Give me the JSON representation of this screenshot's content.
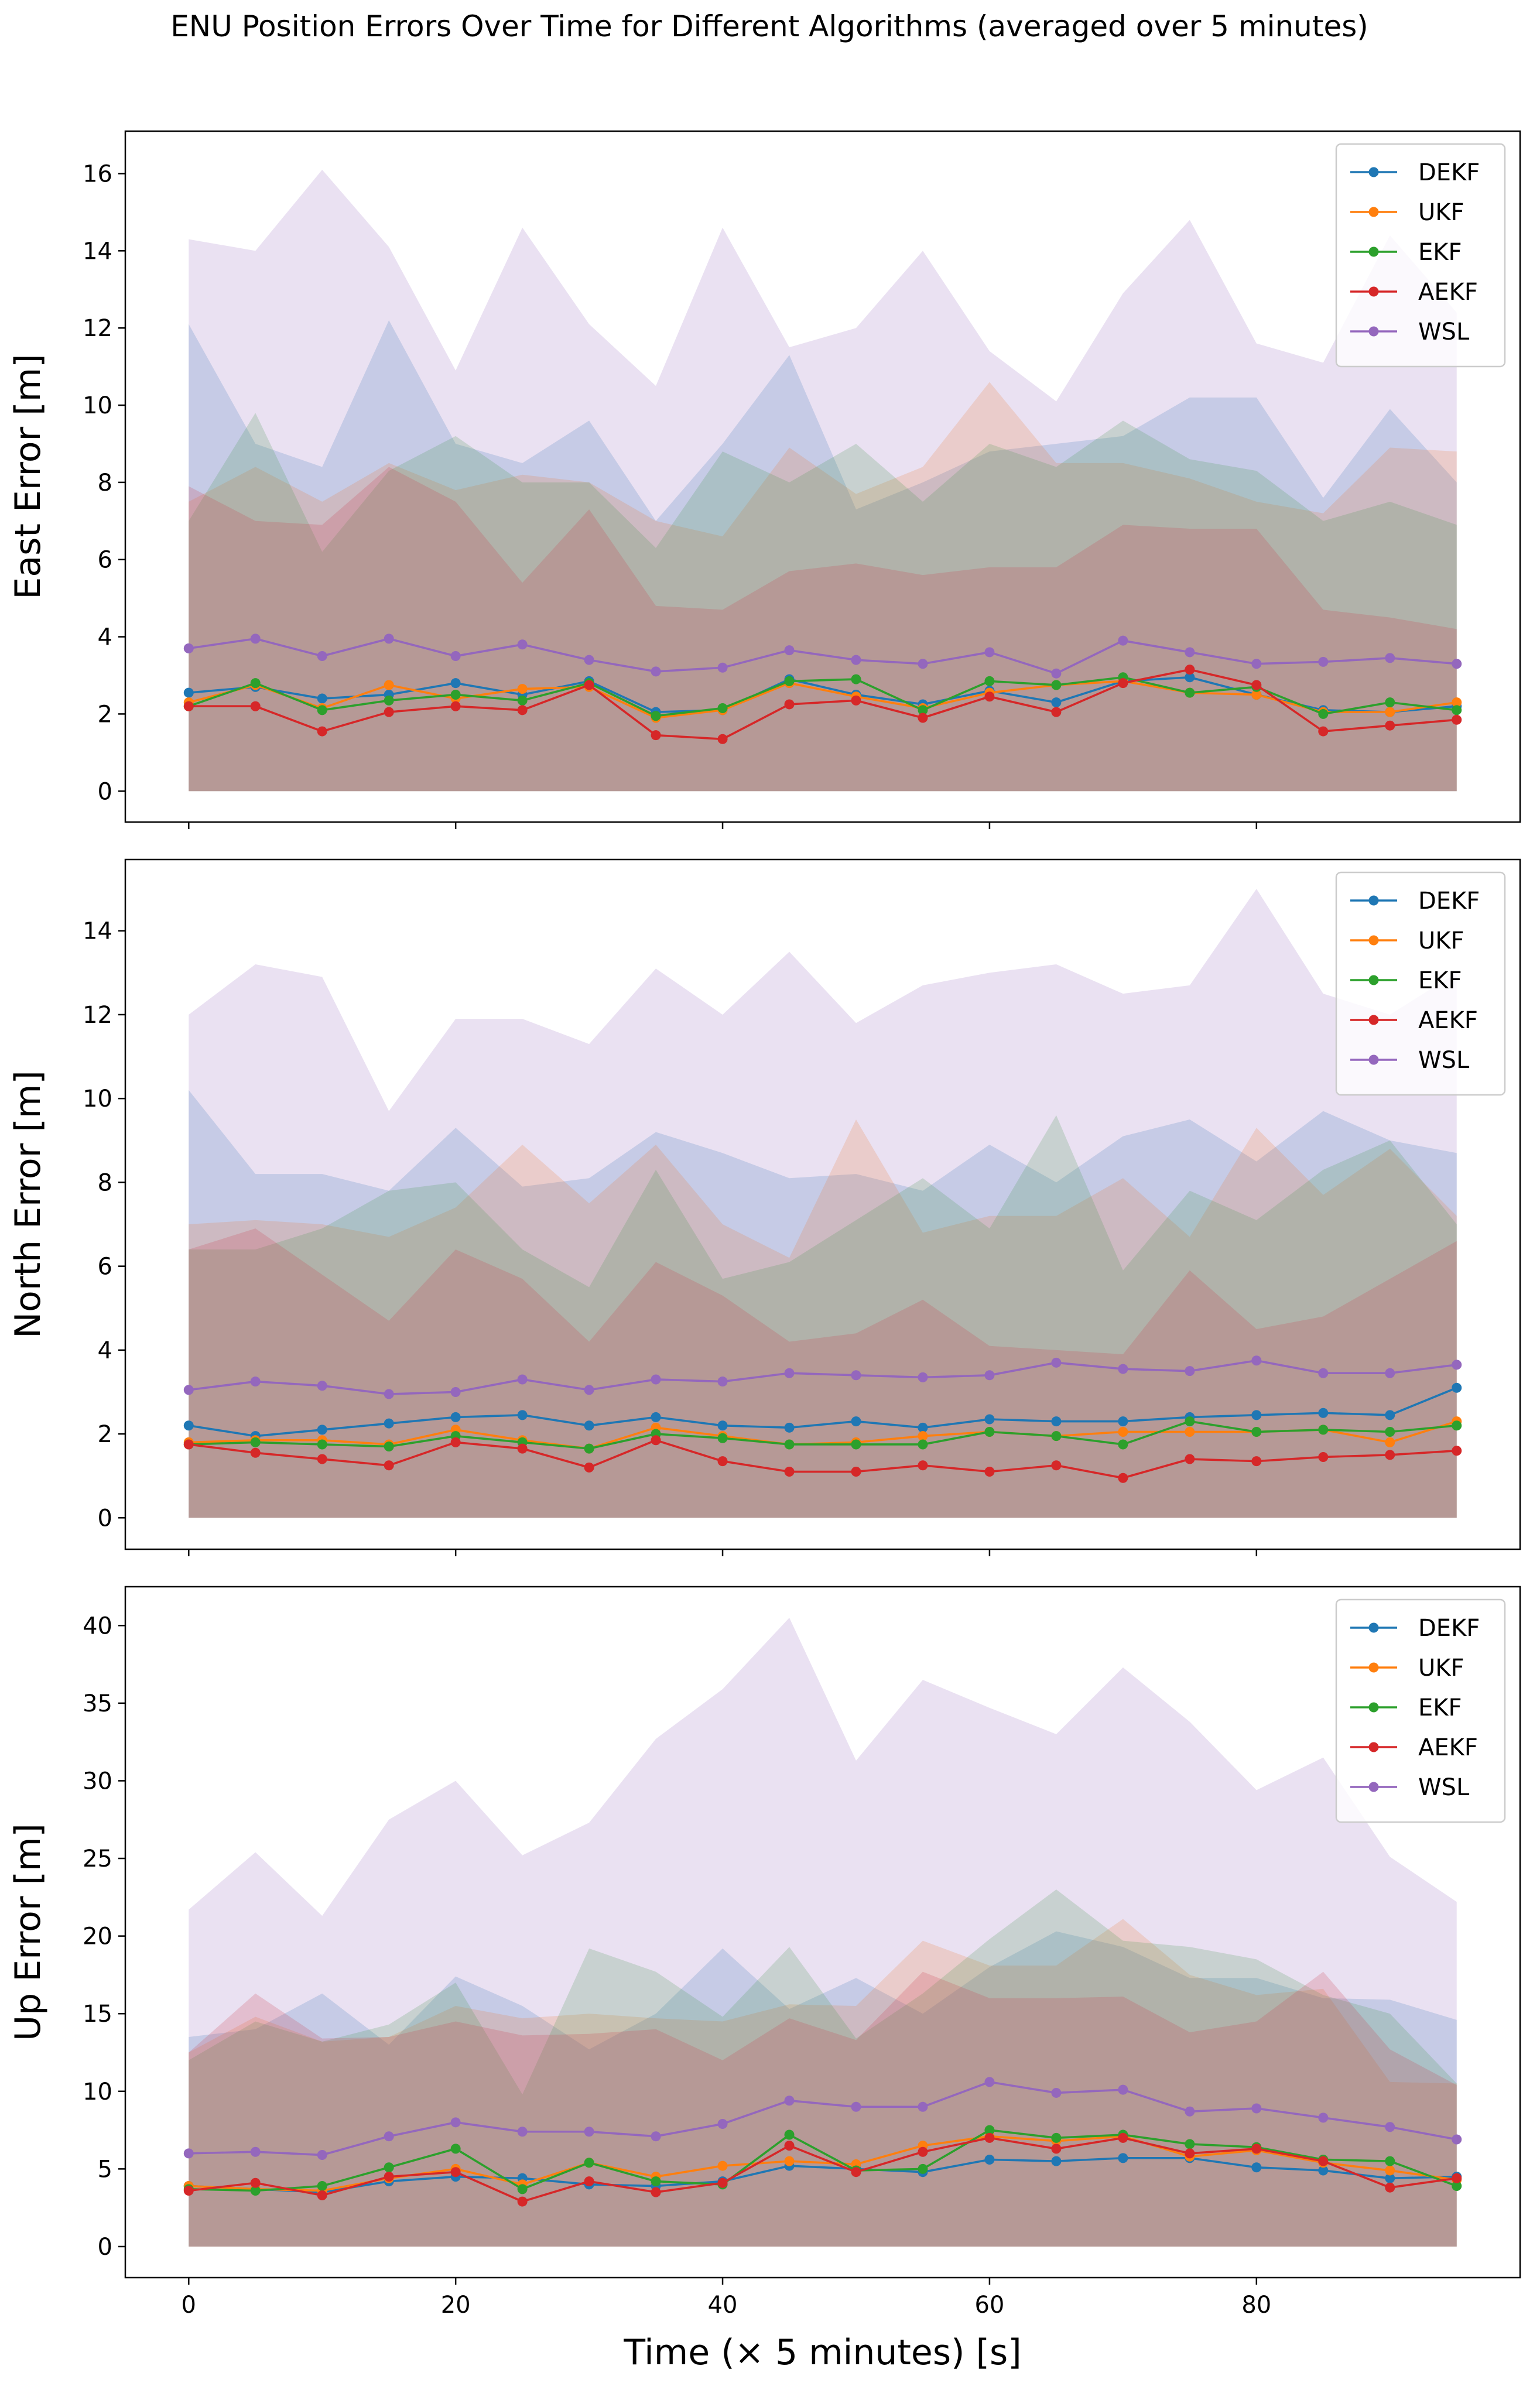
{
  "figure_title": "ENU Position Errors Over Time for Different Algorithms (averaged over 5 minutes)",
  "series_names": [
    "DEKF",
    "UKF",
    "EKF",
    "AEKF",
    "WSL"
  ],
  "series_colors": [
    "#1f77b4",
    "#ff7f0e",
    "#2ca02c",
    "#d62728",
    "#9467bd"
  ],
  "chart_data": [
    {
      "type": "line",
      "panel": "east",
      "ylabel": "East Error [m]",
      "xlabel": "",
      "ylim": [
        -0.8,
        17.1
      ],
      "yticks": [
        0,
        2,
        4,
        6,
        8,
        10,
        12,
        14,
        16
      ],
      "xlim": [
        -4.75,
        99.75
      ],
      "xticks": [
        0,
        20,
        40,
        60,
        80
      ],
      "legend": "top-right",
      "x": [
        0,
        5,
        10,
        15,
        20,
        25,
        30,
        35,
        40,
        45,
        50,
        55,
        60,
        65,
        70,
        75,
        80,
        85,
        90,
        95
      ],
      "series": [
        {
          "name": "DEKF",
          "values": [
            2.55,
            2.7,
            2.4,
            2.5,
            2.8,
            2.5,
            2.85,
            2.05,
            2.1,
            2.9,
            2.5,
            2.25,
            2.6,
            2.3,
            2.85,
            2.95,
            2.5,
            2.1,
            2.05,
            2.2
          ],
          "upper": [
            12.1,
            9.0,
            8.4,
            12.2,
            9.0,
            8.5,
            9.6,
            7.0,
            9.0,
            11.3,
            7.3,
            8.0,
            8.8,
            9.0,
            9.2,
            10.2,
            10.2,
            7.6,
            9.9,
            8.0
          ]
        },
        {
          "name": "UKF",
          "values": [
            2.3,
            2.75,
            2.15,
            2.75,
            2.4,
            2.65,
            2.7,
            1.9,
            2.1,
            2.8,
            2.45,
            2.15,
            2.55,
            2.75,
            2.85,
            2.55,
            2.5,
            2.05,
            2.05,
            2.3
          ],
          "upper": [
            7.5,
            8.4,
            7.5,
            8.5,
            7.8,
            8.2,
            8.0,
            7.0,
            6.6,
            8.9,
            7.7,
            8.4,
            10.6,
            8.5,
            8.5,
            8.1,
            7.5,
            7.2,
            8.9,
            8.8
          ]
        },
        {
          "name": "EKF",
          "values": [
            2.2,
            2.8,
            2.1,
            2.35,
            2.5,
            2.35,
            2.8,
            1.95,
            2.15,
            2.85,
            2.9,
            2.1,
            2.85,
            2.75,
            2.95,
            2.55,
            2.7,
            2.0,
            2.3,
            2.1
          ],
          "upper": [
            7.0,
            9.8,
            6.2,
            8.3,
            9.2,
            8.0,
            8.0,
            6.3,
            8.8,
            8.0,
            9.0,
            7.5,
            9.0,
            8.4,
            9.6,
            8.6,
            8.3,
            7.0,
            7.5,
            6.9
          ]
        },
        {
          "name": "AEKF",
          "values": [
            2.2,
            2.2,
            1.55,
            2.05,
            2.2,
            2.1,
            2.75,
            1.45,
            1.35,
            2.25,
            2.35,
            1.9,
            2.45,
            2.05,
            2.8,
            3.15,
            2.75,
            1.55,
            1.7,
            1.85
          ],
          "upper": [
            7.9,
            7.0,
            6.9,
            8.4,
            7.5,
            5.4,
            7.3,
            4.8,
            4.7,
            5.7,
            5.9,
            5.6,
            5.8,
            5.8,
            6.9,
            6.8,
            6.8,
            4.7,
            4.5,
            4.2
          ]
        },
        {
          "name": "WSL",
          "values": [
            3.7,
            3.95,
            3.5,
            3.95,
            3.5,
            3.8,
            3.4,
            3.1,
            3.2,
            3.65,
            3.4,
            3.3,
            3.6,
            3.05,
            3.9,
            3.6,
            3.3,
            3.35,
            3.45,
            3.3
          ],
          "upper": [
            14.3,
            14.0,
            16.1,
            14.1,
            10.9,
            14.6,
            12.1,
            10.5,
            14.6,
            11.5,
            12.0,
            14.0,
            11.4,
            10.1,
            12.9,
            14.8,
            11.6,
            11.1,
            14.4,
            12.4
          ]
        }
      ]
    },
    {
      "type": "line",
      "panel": "north",
      "ylabel": "North Error [m]",
      "xlabel": "",
      "ylim": [
        -0.75,
        15.7
      ],
      "yticks": [
        0,
        2,
        4,
        6,
        8,
        10,
        12,
        14
      ],
      "xlim": [
        -4.75,
        99.75
      ],
      "xticks": [
        0,
        20,
        40,
        60,
        80
      ],
      "legend": "top-right",
      "x": [
        0,
        5,
        10,
        15,
        20,
        25,
        30,
        35,
        40,
        45,
        50,
        55,
        60,
        65,
        70,
        75,
        80,
        85,
        90,
        95
      ],
      "series": [
        {
          "name": "DEKF",
          "values": [
            2.2,
            1.95,
            2.1,
            2.25,
            2.4,
            2.45,
            2.2,
            2.4,
            2.2,
            2.15,
            2.3,
            2.15,
            2.35,
            2.3,
            2.3,
            2.4,
            2.45,
            2.5,
            2.45,
            3.1
          ],
          "upper": [
            10.2,
            8.2,
            8.2,
            7.8,
            9.3,
            7.9,
            8.1,
            9.2,
            8.7,
            8.1,
            8.2,
            7.8,
            8.9,
            8.0,
            9.1,
            9.5,
            8.5,
            9.7,
            9.0,
            8.7
          ]
        },
        {
          "name": "UKF",
          "values": [
            1.8,
            1.85,
            1.85,
            1.75,
            2.1,
            1.85,
            1.65,
            2.15,
            1.95,
            1.75,
            1.8,
            1.95,
            2.05,
            1.95,
            2.05,
            2.05,
            2.05,
            2.1,
            1.8,
            2.3
          ],
          "upper": [
            7.0,
            7.1,
            7.0,
            6.7,
            7.4,
            8.9,
            7.5,
            8.9,
            7.0,
            6.2,
            9.5,
            6.8,
            7.2,
            7.2,
            8.1,
            6.7,
            9.3,
            7.7,
            8.8,
            7.2
          ]
        },
        {
          "name": "EKF",
          "values": [
            1.75,
            1.8,
            1.75,
            1.7,
            1.95,
            1.8,
            1.65,
            2.0,
            1.9,
            1.75,
            1.75,
            1.75,
            2.05,
            1.95,
            1.75,
            2.3,
            2.05,
            2.1,
            2.05,
            2.2
          ],
          "upper": [
            6.4,
            6.4,
            6.9,
            7.8,
            8.0,
            6.4,
            5.5,
            8.3,
            5.7,
            6.1,
            7.1,
            8.1,
            6.9,
            9.6,
            5.9,
            7.8,
            7.1,
            8.3,
            9.0,
            7.0
          ]
        },
        {
          "name": "AEKF",
          "values": [
            1.75,
            1.55,
            1.4,
            1.25,
            1.8,
            1.65,
            1.2,
            1.85,
            1.35,
            1.1,
            1.1,
            1.25,
            1.1,
            1.25,
            0.95,
            1.4,
            1.35,
            1.45,
            1.5,
            1.6
          ],
          "upper": [
            6.4,
            6.9,
            5.8,
            4.7,
            6.4,
            5.7,
            4.2,
            6.1,
            5.3,
            4.2,
            4.4,
            5.2,
            4.1,
            4.0,
            3.9,
            5.9,
            4.5,
            4.8,
            5.7,
            6.6
          ]
        },
        {
          "name": "WSL",
          "values": [
            3.05,
            3.25,
            3.15,
            2.95,
            3.0,
            3.3,
            3.05,
            3.3,
            3.25,
            3.45,
            3.4,
            3.35,
            3.4,
            3.7,
            3.55,
            3.5,
            3.75,
            3.45,
            3.45,
            3.65
          ],
          "upper": [
            12.0,
            13.2,
            12.9,
            9.7,
            11.9,
            11.9,
            11.3,
            13.1,
            12.0,
            13.5,
            11.8,
            12.7,
            13.0,
            13.2,
            12.5,
            12.7,
            15.0,
            12.5,
            12.0,
            13.0
          ]
        }
      ]
    },
    {
      "type": "line",
      "panel": "up",
      "ylabel": "Up Error [m]",
      "xlabel": "Time (× 5 minutes) [s]",
      "ylim": [
        -2.0,
        42.5
      ],
      "yticks": [
        0,
        5,
        10,
        15,
        20,
        25,
        30,
        35,
        40
      ],
      "xlim": [
        -4.75,
        99.75
      ],
      "xticks": [
        0,
        20,
        40,
        60,
        80
      ],
      "legend": "top-right",
      "x": [
        0,
        5,
        10,
        15,
        20,
        25,
        30,
        35,
        40,
        45,
        50,
        55,
        60,
        65,
        70,
        75,
        80,
        85,
        90,
        95
      ],
      "series": [
        {
          "name": "DEKF",
          "values": [
            3.9,
            3.7,
            3.5,
            4.2,
            4.5,
            4.4,
            4.0,
            3.9,
            4.2,
            5.2,
            5.0,
            4.8,
            5.6,
            5.5,
            5.7,
            5.7,
            5.1,
            4.9,
            4.4,
            4.5
          ],
          "upper": [
            13.5,
            14.0,
            16.3,
            13.0,
            17.4,
            15.5,
            12.7,
            15.0,
            19.2,
            15.3,
            17.3,
            15.0,
            18.0,
            20.3,
            19.3,
            17.3,
            17.3,
            16.0,
            15.9,
            14.6
          ]
        },
        {
          "name": "UKF",
          "values": [
            3.9,
            3.7,
            3.6,
            4.4,
            5.0,
            4.0,
            5.4,
            4.5,
            5.2,
            5.5,
            5.3,
            6.5,
            7.1,
            6.8,
            7.1,
            5.8,
            6.2,
            5.4,
            4.9,
            4.3
          ],
          "upper": [
            12.5,
            14.8,
            13.2,
            13.5,
            15.5,
            14.7,
            15.0,
            14.7,
            14.5,
            15.6,
            15.5,
            19.7,
            18.1,
            18.1,
            21.1,
            17.5,
            16.2,
            16.6,
            10.6,
            10.5
          ]
        },
        {
          "name": "EKF",
          "values": [
            3.7,
            3.6,
            3.9,
            5.1,
            6.3,
            3.7,
            5.4,
            4.2,
            4.0,
            7.2,
            4.9,
            5.0,
            7.5,
            7.0,
            7.2,
            6.6,
            6.4,
            5.6,
            5.5,
            3.9
          ],
          "upper": [
            12.0,
            14.5,
            13.2,
            14.3,
            17.0,
            9.8,
            19.2,
            17.7,
            14.8,
            19.3,
            13.4,
            16.3,
            19.8,
            23.0,
            19.7,
            19.3,
            18.5,
            16.2,
            15.0,
            10.5
          ]
        },
        {
          "name": "AEKF",
          "values": [
            3.6,
            4.1,
            3.3,
            4.5,
            4.8,
            2.9,
            4.2,
            3.5,
            4.1,
            6.5,
            4.8,
            6.1,
            7.0,
            6.3,
            7.0,
            6.0,
            6.3,
            5.5,
            3.8,
            4.4
          ],
          "upper": [
            12.5,
            16.3,
            13.4,
            13.5,
            14.5,
            13.6,
            13.7,
            14.0,
            12.0,
            14.7,
            13.3,
            17.7,
            16.0,
            16.0,
            16.1,
            13.8,
            14.5,
            17.7,
            12.7,
            10.4
          ]
        },
        {
          "name": "WSL",
          "values": [
            6.0,
            6.1,
            5.9,
            7.1,
            8.0,
            7.4,
            7.4,
            7.1,
            7.9,
            9.4,
            9.0,
            9.0,
            10.6,
            9.9,
            10.1,
            8.7,
            8.9,
            8.3,
            7.7,
            6.9
          ],
          "upper": [
            21.7,
            25.4,
            21.3,
            27.5,
            30.0,
            25.2,
            27.3,
            32.7,
            35.9,
            40.5,
            31.3,
            36.5,
            34.7,
            33.0,
            37.3,
            33.8,
            29.4,
            31.5,
            25.1,
            22.2
          ]
        }
      ]
    }
  ]
}
